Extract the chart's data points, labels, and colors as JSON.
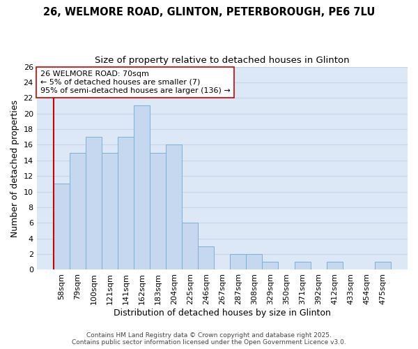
{
  "title_line1": "26, WELMORE ROAD, GLINTON, PETERBOROUGH, PE6 7LU",
  "title_line2": "Size of property relative to detached houses in Glinton",
  "xlabel": "Distribution of detached houses by size in Glinton",
  "ylabel": "Number of detached properties",
  "categories": [
    "58sqm",
    "79sqm",
    "100sqm",
    "121sqm",
    "141sqm",
    "162sqm",
    "183sqm",
    "204sqm",
    "225sqm",
    "246sqm",
    "267sqm",
    "287sqm",
    "308sqm",
    "329sqm",
    "350sqm",
    "371sqm",
    "392sqm",
    "412sqm",
    "433sqm",
    "454sqm",
    "475sqm"
  ],
  "values": [
    11,
    15,
    17,
    15,
    17,
    21,
    15,
    16,
    6,
    3,
    0,
    2,
    2,
    1,
    0,
    1,
    0,
    1,
    0,
    0,
    1
  ],
  "bar_color": "#c5d8f0",
  "bar_edge_color": "#7ab0d8",
  "highlight_line_color": "#cc0000",
  "annotation_text": "26 WELMORE ROAD: 70sqm\n← 5% of detached houses are smaller (7)\n95% of semi-detached houses are larger (136) →",
  "annotation_box_color": "#ffffff",
  "annotation_box_edge_color": "#cc0000",
  "ylim": [
    0,
    26
  ],
  "yticks": [
    0,
    2,
    4,
    6,
    8,
    10,
    12,
    14,
    16,
    18,
    20,
    22,
    24,
    26
  ],
  "grid_color": "#c8d4e8",
  "background_color": "#dce8f5",
  "footer_line1": "Contains HM Land Registry data © Crown copyright and database right 2025.",
  "footer_line2": "Contains public sector information licensed under the Open Government Licence v3.0.",
  "title_fontsize": 10.5,
  "subtitle_fontsize": 9.5,
  "axis_label_fontsize": 9,
  "tick_fontsize": 8,
  "annotation_fontsize": 8,
  "footer_fontsize": 6.5
}
